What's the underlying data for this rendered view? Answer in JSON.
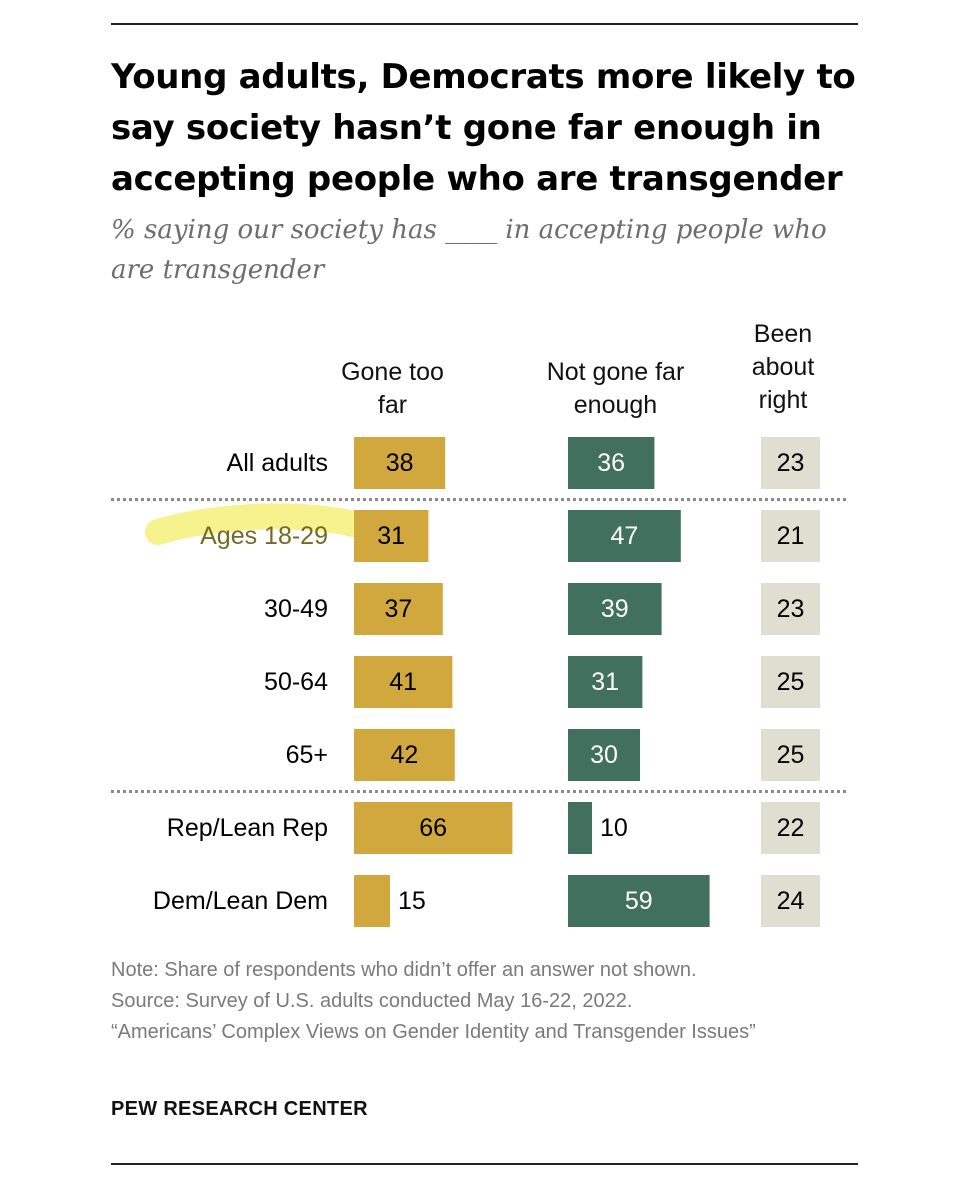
{
  "header": {
    "title": "Young adults, Democrats more likely to say society hasn’t gone far enough in accepting people who are transgender",
    "subtitle": "% saying our society has ____ in accepting people who are transgender"
  },
  "columns": {
    "gone_too_far": "Gone too far",
    "not_far_enough": "Not gone far enough",
    "about_right": "Been about right"
  },
  "chart_data": {
    "type": "bar",
    "categories": [
      "All adults",
      "Ages 18-29",
      "30-49",
      "50-64",
      "65+",
      "Rep/Lean Rep",
      "Dem/Lean Dem"
    ],
    "series": [
      {
        "name": "Gone too far",
        "values": [
          38,
          31,
          37,
          41,
          42,
          66,
          15
        ]
      },
      {
        "name": "Not gone far enough",
        "values": [
          36,
          47,
          39,
          31,
          30,
          10,
          59
        ]
      },
      {
        "name": "Been about right",
        "values": [
          23,
          21,
          23,
          25,
          25,
          22,
          24
        ]
      }
    ],
    "highlighted_category": "Ages 18-29",
    "group_dividers_after": [
      "All adults",
      "65+"
    ],
    "colors": {
      "gone_too_far": "#d0a83e",
      "not_far_enough": "#41705e",
      "about_right": "#e0ddd1",
      "highlight": "#f4f07a",
      "highlight_text": "#756a24"
    }
  },
  "footer": {
    "note": "Note: Share of respondents who didn’t offer an answer not shown.",
    "source": "Source: Survey of U.S. adults conducted May 16-22, 2022.",
    "report": "“Americans’ Complex Views on Gender Identity and Transgender Issues”",
    "brand": "PEW RESEARCH CENTER"
  }
}
